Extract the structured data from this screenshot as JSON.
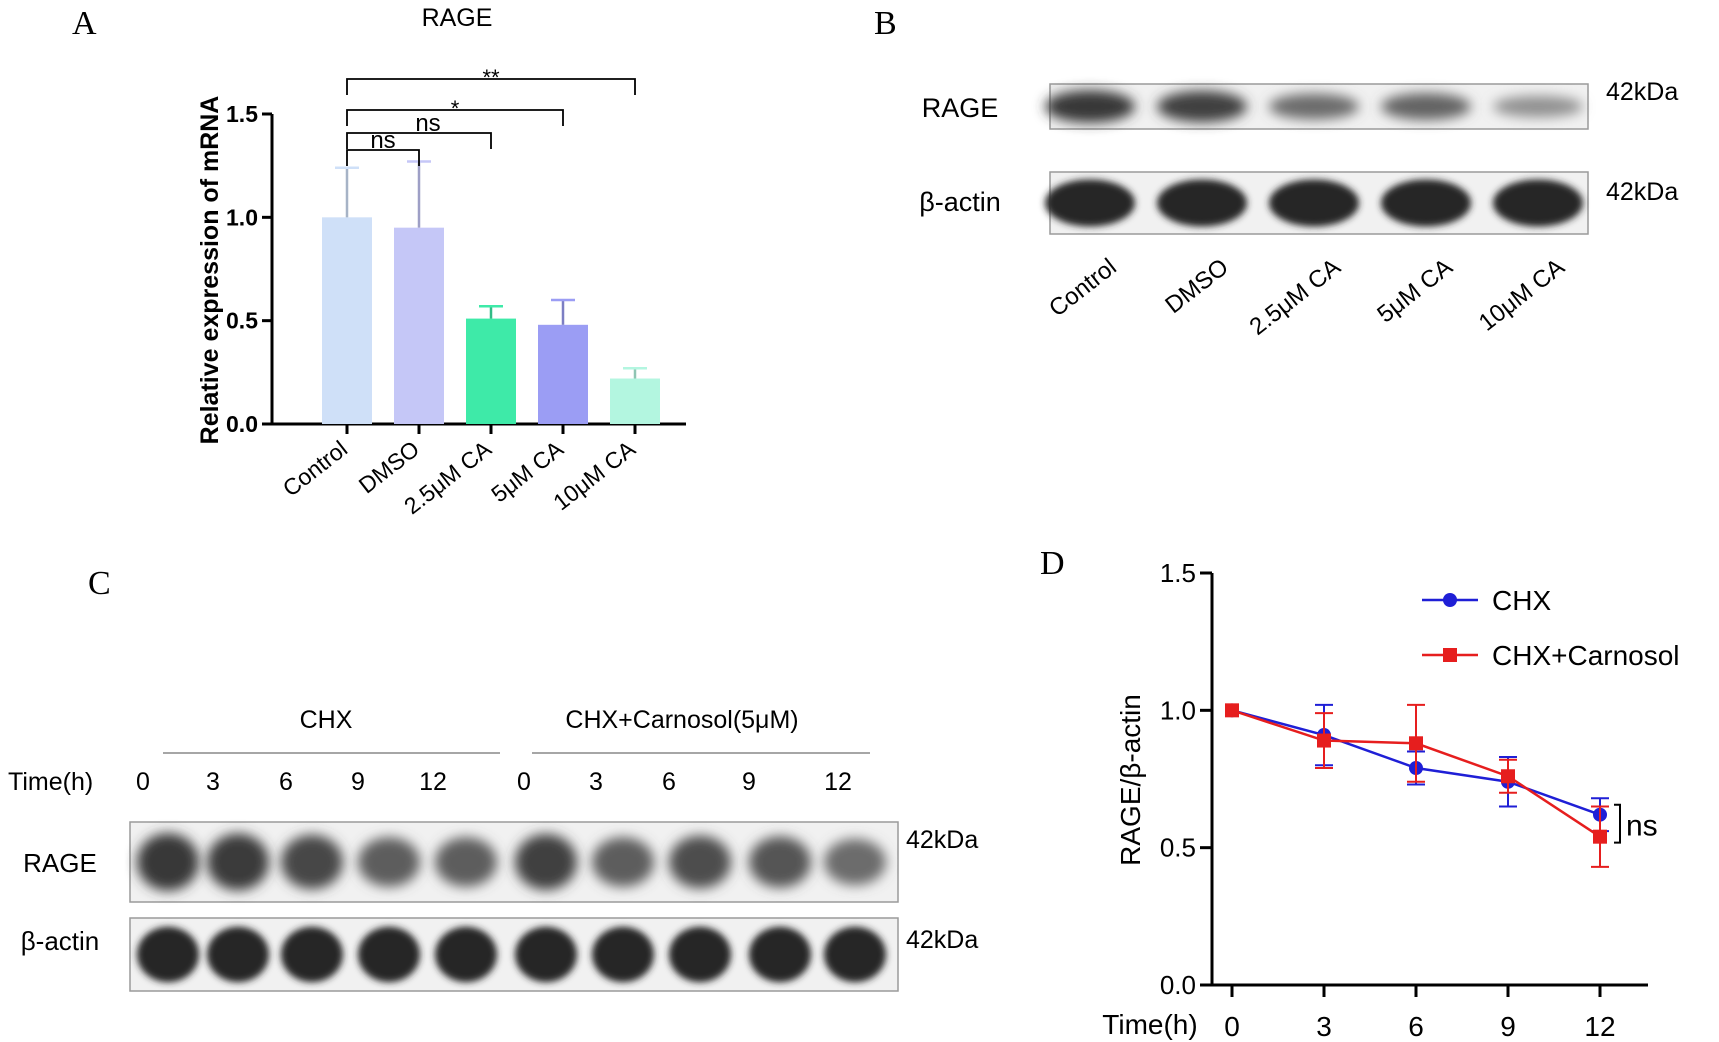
{
  "panels": {
    "A": {
      "letter": "A"
    },
    "B": {
      "letter": "B",
      "rows": [
        {
          "label": "RAGE",
          "size": "42kDa",
          "bands": [
            0.9,
            0.85,
            0.55,
            0.6,
            0.3
          ]
        },
        {
          "label": "β-actin",
          "size": "42kDa",
          "bands": [
            1,
            1,
            1,
            1,
            1
          ]
        }
      ],
      "lanes": [
        "Control",
        "DMSO",
        "2.5μM CA",
        "5μM CA",
        "10μM CA"
      ]
    },
    "C": {
      "letter": "C",
      "groups": [
        "CHX",
        "CHX+Carnosol(5μM)"
      ],
      "time_label": "Time(h)",
      "times": [
        "0",
        "3",
        "6",
        "9",
        "12",
        "0",
        "3",
        "6",
        "9",
        "12"
      ],
      "rows": [
        {
          "label": "RAGE",
          "size": "42kDa",
          "bands": [
            0.9,
            0.88,
            0.8,
            0.65,
            0.65,
            0.85,
            0.65,
            0.75,
            0.7,
            0.55
          ]
        },
        {
          "label": "β-actin",
          "size": "42kDa",
          "bands": [
            1,
            1,
            1,
            1,
            1,
            1,
            1,
            1,
            1,
            1
          ]
        }
      ]
    },
    "D": {
      "letter": "D"
    }
  },
  "chart_data": [
    {
      "type": "bar",
      "title": "RAGE",
      "ylabel": "Relative expression of mRNA",
      "categories": [
        "Control",
        "DMSO",
        "2.5μM CA",
        "5μM CA",
        "10μM CA"
      ],
      "values": [
        1.0,
        0.95,
        0.51,
        0.48,
        0.22
      ],
      "errors": [
        0.24,
        0.32,
        0.06,
        0.12,
        0.05
      ],
      "colors": [
        "#cfe0f8",
        "#c5c7f7",
        "#3eeaa8",
        "#9b9df4",
        "#b3f6e0"
      ],
      "ylim": [
        0,
        1.5
      ],
      "yticks": [
        "0.0",
        "0.5",
        "1.0",
        "1.5"
      ],
      "significance": [
        {
          "from": "Control",
          "to": "DMSO",
          "label": "ns"
        },
        {
          "from": "Control",
          "to": "2.5μM CA",
          "label": "ns"
        },
        {
          "from": "Control",
          "to": "5μM CA",
          "label": "*"
        },
        {
          "from": "Control",
          "to": "10μM CA",
          "label": "**"
        }
      ]
    },
    {
      "type": "line",
      "ylabel": "RAGE/β-actin",
      "xlabel": "Time(h)",
      "x": [
        0,
        3,
        6,
        9,
        12
      ],
      "xticks": [
        "0",
        "3",
        "6",
        "9",
        "12"
      ],
      "ylim": [
        0,
        1.5
      ],
      "yticks": [
        "0.0",
        "0.5",
        "1.0",
        "1.5"
      ],
      "legend_position": "top-right",
      "series": [
        {
          "name": "CHX",
          "values": [
            1.0,
            0.91,
            0.79,
            0.74,
            0.62
          ],
          "errors": [
            0,
            0.11,
            0.06,
            0.09,
            0.06
          ],
          "color": "#1f1fd6",
          "marker": "circle"
        },
        {
          "name": "CHX+Carnosol",
          "values": [
            1.0,
            0.89,
            0.88,
            0.76,
            0.54
          ],
          "errors": [
            0,
            0.1,
            0.14,
            0.06,
            0.11
          ],
          "color": "#e61e1e",
          "marker": "square"
        }
      ],
      "annotation": "ns"
    }
  ]
}
